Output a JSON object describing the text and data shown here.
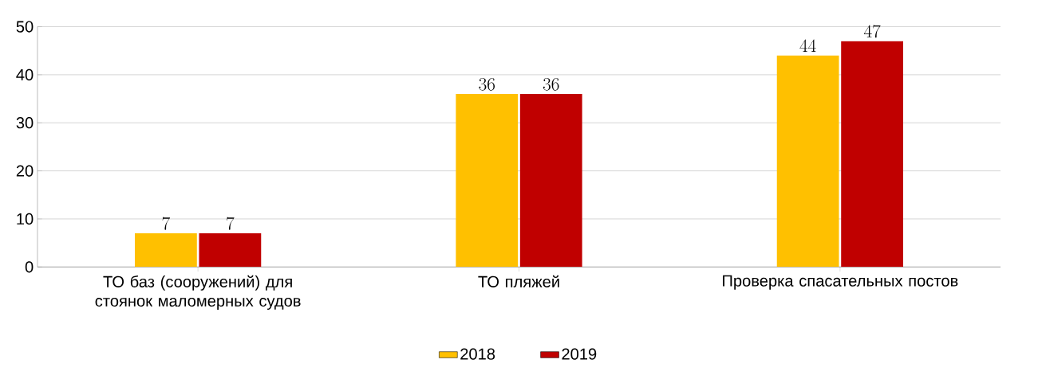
{
  "chart_data": {
    "type": "bar",
    "categories": [
      "ТО баз (сооружений) для стоянок маломерных судов",
      "ТО пляжей",
      "Проверка спасательных постов"
    ],
    "series": [
      {
        "name": "2018",
        "color": "#ffc000",
        "values": [
          7,
          36,
          44
        ]
      },
      {
        "name": "2019",
        "color": "#c00000",
        "values": [
          7,
          36,
          47
        ]
      }
    ],
    "ylim": [
      0,
      50
    ],
    "yticks": [
      0,
      10,
      20,
      30,
      40,
      50
    ],
    "grid": "y",
    "legend": "bottom",
    "data_labels": true
  }
}
